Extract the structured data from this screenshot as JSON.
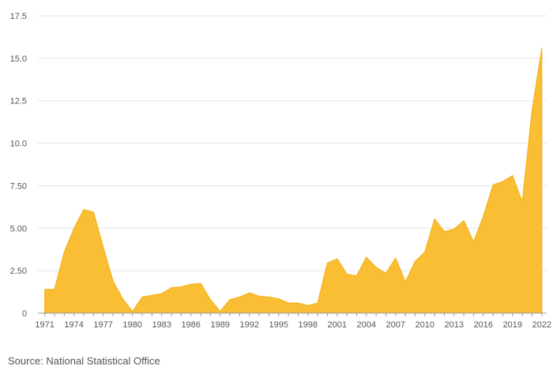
{
  "source": "Source: National Statistical Office",
  "colors": {
    "fill": "#F9BE33",
    "stroke": "#F2AE12",
    "grid": "#E6E6E6",
    "axis": "#999999",
    "text": "#555555"
  },
  "chart_data": {
    "type": "area",
    "title": "",
    "xlabel": "",
    "ylabel": "",
    "ylim": [
      0,
      17.5
    ],
    "yticks": [
      "0",
      "2.50",
      "5.00",
      "7.50",
      "10.0",
      "12.5",
      "15.0",
      "17.5"
    ],
    "xticks": [
      "1971",
      "1974",
      "1977",
      "1980",
      "1983",
      "1986",
      "1989",
      "1992",
      "1995",
      "1998",
      "2001",
      "2004",
      "2007",
      "2010",
      "2013",
      "2016",
      "2019",
      "2022"
    ],
    "grid": true,
    "x": [
      1971,
      1972,
      1973,
      1974,
      1975,
      1976,
      1977,
      1978,
      1979,
      1980,
      1981,
      1982,
      1983,
      1984,
      1985,
      1986,
      1987,
      1988,
      1989,
      1990,
      1991,
      1992,
      1993,
      1994,
      1995,
      1996,
      1997,
      1998,
      1999,
      2000,
      2001,
      2002,
      2003,
      2004,
      2005,
      2006,
      2007,
      2008,
      2009,
      2010,
      2011,
      2012,
      2013,
      2014,
      2015,
      2016,
      2017,
      2018,
      2019,
      2020,
      2021,
      2022
    ],
    "values": [
      1.4,
      1.4,
      3.6,
      5.0,
      6.1,
      5.95,
      3.9,
      1.9,
      0.85,
      0.1,
      0.95,
      1.05,
      1.15,
      1.5,
      1.55,
      1.7,
      1.75,
      0.8,
      0.1,
      0.8,
      0.95,
      1.2,
      1.0,
      0.95,
      0.85,
      0.6,
      0.6,
      0.45,
      0.6,
      2.95,
      3.2,
      2.3,
      2.2,
      3.3,
      2.7,
      2.35,
      3.25,
      1.85,
      3.05,
      3.6,
      5.55,
      4.8,
      4.95,
      5.45,
      4.2,
      5.7,
      7.55,
      7.75,
      8.1,
      6.55,
      11.95,
      15.6
    ]
  }
}
